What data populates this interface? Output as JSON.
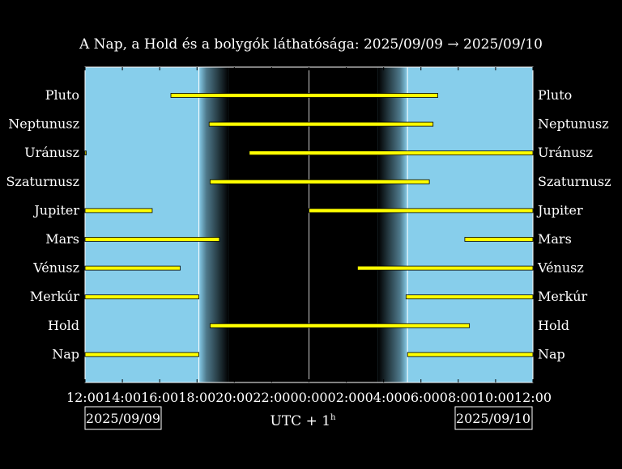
{
  "chart_data": {
    "type": "gantt",
    "title": "A Nap, a Hold és a bolygók láthatósága: 2025/09/09 → 2025/09/10",
    "xlabel": "UTC + 1",
    "xlabel_sup": "h",
    "x_range_hours": [
      12,
      36
    ],
    "x_ticks": [
      {
        "hour": 12,
        "label": "12:00"
      },
      {
        "hour": 14,
        "label": "14:00"
      },
      {
        "hour": 16,
        "label": "16:00"
      },
      {
        "hour": 18,
        "label": "18:00"
      },
      {
        "hour": 20,
        "label": "20:00"
      },
      {
        "hour": 22,
        "label": "22:00"
      },
      {
        "hour": 24,
        "label": "00:00"
      },
      {
        "hour": 26,
        "label": "02:00"
      },
      {
        "hour": 28,
        "label": "04:00"
      },
      {
        "hour": 30,
        "label": "06:00"
      },
      {
        "hour": 32,
        "label": "08:00"
      },
      {
        "hour": 34,
        "label": "10:00"
      },
      {
        "hour": 36,
        "label": "12:00"
      }
    ],
    "date_left": "2025/09/09",
    "date_right": "2025/09/10",
    "midnight_hour": 24,
    "sunset_hour": 18.1,
    "sunrise_hour": 29.28,
    "dusk_end_hour": 19.7,
    "dawn_start_hour": 27.7,
    "colors": {
      "day": "#87ceeb",
      "night": "#000000",
      "bar": "#ffff00",
      "bar_edge": "#000000",
      "frame": "#ffffff"
    },
    "series": [
      {
        "name": "Pluto",
        "intervals": [
          [
            16.6,
            30.9
          ]
        ]
      },
      {
        "name": "Neptunusz",
        "intervals": [
          [
            18.65,
            30.65
          ]
        ]
      },
      {
        "name": "Uránusz",
        "intervals": [
          [
            12,
            12.05
          ],
          [
            20.8,
            36
          ]
        ]
      },
      {
        "name": "Szaturnusz",
        "intervals": [
          [
            18.7,
            30.45
          ]
        ]
      },
      {
        "name": "Jupiter",
        "intervals": [
          [
            12,
            15.6
          ],
          [
            24,
            36
          ]
        ]
      },
      {
        "name": "Mars",
        "intervals": [
          [
            12,
            19.2
          ],
          [
            32.35,
            36
          ]
        ]
      },
      {
        "name": "Vénusz",
        "intervals": [
          [
            12,
            17.1
          ],
          [
            26.6,
            36
          ]
        ]
      },
      {
        "name": "Merkúr",
        "intervals": [
          [
            12,
            18.1
          ],
          [
            29.2,
            36
          ]
        ]
      },
      {
        "name": "Hold",
        "intervals": [
          [
            18.7,
            32.6
          ]
        ]
      },
      {
        "name": "Nap",
        "intervals": [
          [
            12,
            18.1
          ],
          [
            29.28,
            36
          ]
        ]
      }
    ]
  }
}
